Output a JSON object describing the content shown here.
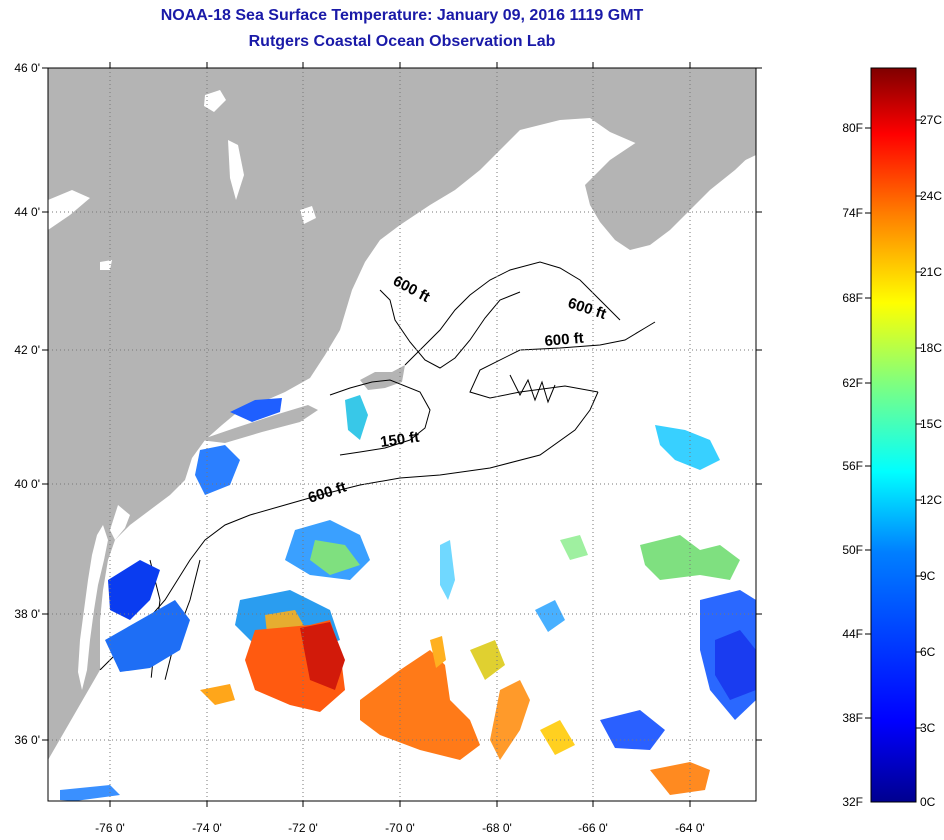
{
  "title": "NOAA-18 Sea Surface Temperature:  January 09, 2016 1119 GMT",
  "subtitle": "Rutgers Coastal Ocean Observation Lab",
  "lat_labels": [
    "46 0'",
    "44 0'",
    "42 0'",
    "40 0'",
    "38 0'",
    "36 0'"
  ],
  "lon_labels": [
    "-76 0'",
    "-74 0'",
    "-72 0'",
    "-70 0'",
    "-68 0'",
    "-66 0'",
    "-64 0'"
  ],
  "contour_labels": [
    "600 ft",
    "600 ft",
    "600 ft",
    "150 ft",
    "600 ft"
  ],
  "colorbar": {
    "fahrenheit": [
      "80F",
      "74F",
      "68F",
      "62F",
      "56F",
      "50F",
      "44F",
      "38F",
      "32F"
    ],
    "celsius": [
      "27C",
      "24C",
      "21C",
      "18C",
      "15C",
      "12C",
      "9C",
      "6C",
      "3C",
      "0C"
    ],
    "colors": [
      "#7f0000",
      "#ff0000",
      "#ff7f00",
      "#ffff00",
      "#7fff7f",
      "#00ffff",
      "#007fff",
      "#0000ff",
      "#00008f"
    ]
  },
  "colors": {
    "land": "#b4b4b4",
    "title": "#1a1aa8",
    "ocean_no_data": "#ffffff"
  }
}
